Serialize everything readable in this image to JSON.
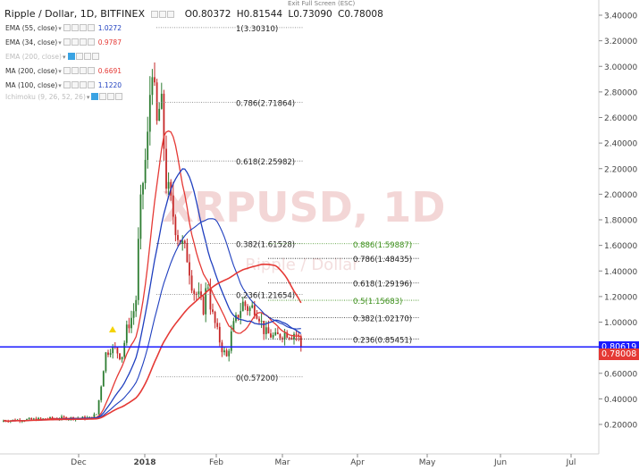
{
  "toolbar": {
    "exit_fullscreen": "Exit Full Screen (ESC)"
  },
  "header": {
    "symbol": "Ripple / Dollar, 1D, BITFINEX",
    "open": "O0.80372",
    "high": "H0.81544",
    "low": "L0.73090",
    "close": "C0.78008"
  },
  "studies": [
    {
      "label": "EMA (55, close)",
      "value": "1.0272",
      "color": "#1f3fbf",
      "dim": false
    },
    {
      "label": "EMA (34, close)",
      "value": "0.9787",
      "color": "#e53935",
      "dim": false
    },
    {
      "label": "EMA (200, close)",
      "value": "",
      "color": "#bdbdbd",
      "dim": true
    },
    {
      "label": "MA (200, close)",
      "value": "0.6691",
      "color": "#e53935",
      "dim": false
    },
    {
      "label": "MA (100, close)",
      "value": "1.1220",
      "color": "#1f3fbf",
      "dim": false
    },
    {
      "label": "Ichimoku (9, 26, 52, 26)",
      "value": "",
      "color": "#bdbdbd",
      "dim": true
    }
  ],
  "watermark": {
    "symbol": "XRPUSD, 1D",
    "name": "Ripple / Dollar"
  },
  "chart_data": {
    "type": "candlestick",
    "y_axis_ticks": [
      "3.40000",
      "3.20000",
      "3.00000",
      "2.80000",
      "2.60000",
      "2.40000",
      "2.20000",
      "2.00000",
      "1.80000",
      "1.60000",
      "1.40000",
      "1.20000",
      "1.00000",
      "0.80000",
      "0.60000",
      "0.40000",
      "0.20000"
    ],
    "x_axis_ticks": [
      "Dec",
      "2018",
      "Feb",
      "Mar",
      "Apr",
      "May",
      "Jun",
      "Jul"
    ],
    "ylim": [
      0.0,
      3.45
    ],
    "current_price": {
      "value": "0.80619",
      "color": "#1a1aff"
    },
    "last_price": {
      "value": "0.78008",
      "color": "#e53935"
    },
    "fib_retracement_major": [
      {
        "label": "1(3.30310)",
        "value": 3.3031
      },
      {
        "label": "0.786(2.71864)",
        "value": 2.71864
      },
      {
        "label": "0.618(2.25982)",
        "value": 2.25982
      },
      {
        "label": "0.382(1.61528)",
        "value": 1.61528
      },
      {
        "label": "0.236(1.21654)",
        "value": 1.21654
      },
      {
        "label": "0(0.57200)",
        "value": 0.572
      }
    ],
    "fib_retracement_minor": [
      {
        "label": "0.886(1.59887)",
        "value": 1.59887,
        "color": "#3b8e1a"
      },
      {
        "label": "0.786(1.48435)",
        "value": 1.48435,
        "color": "#222222"
      },
      {
        "label": "0.618(1.29196)",
        "value": 1.29196,
        "color": "#222222"
      },
      {
        "label": "0.5(1.15683)",
        "value": 1.15683,
        "color": "#3b8e1a"
      },
      {
        "label": "0.382(1.02170)",
        "value": 1.0217,
        "color": "#222222"
      },
      {
        "label": "0.236(0.85451)",
        "value": 0.85451,
        "color": "#222222"
      }
    ],
    "colors": {
      "up": "#2e7d32",
      "down": "#c62828",
      "ma_red": "#e53935",
      "ma_blue": "#1f3fbf"
    }
  }
}
